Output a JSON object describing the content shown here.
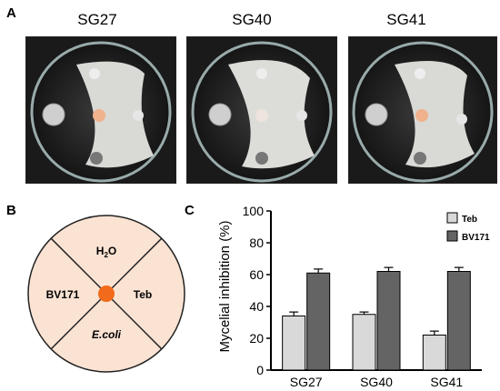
{
  "panel_a": {
    "letter": "A",
    "plates": [
      {
        "label": "SG27"
      },
      {
        "label": "SG40"
      },
      {
        "label": "SG41"
      }
    ]
  },
  "panel_b": {
    "letter": "B",
    "quadrants": {
      "top": "H",
      "top_sub": "2",
      "top_suffix": "O",
      "left": "BV171",
      "right": "Teb",
      "bottom": "E.coli"
    },
    "colors": {
      "fill": "#fbe3d3",
      "center": "#f26a1b",
      "line": "#222222"
    }
  },
  "panel_c": {
    "letter": "C"
  },
  "chart_data": {
    "type": "bar",
    "ylabel": "Mycelial inhibition (%)",
    "ylim": [
      0,
      100
    ],
    "yticks": [
      0,
      20,
      40,
      60,
      80,
      100
    ],
    "categories": [
      "SG27",
      "SG40",
      "SG41"
    ],
    "series": [
      {
        "name": "Teb",
        "values": [
          34,
          35,
          22
        ],
        "errors": [
          2.5,
          1.5,
          2.5
        ],
        "color": "#d9d9d9"
      },
      {
        "name": "BV171",
        "values": [
          61,
          62,
          62
        ],
        "errors": [
          2.5,
          2.5,
          2.5
        ],
        "color": "#646464"
      }
    ],
    "legend": "top-right",
    "grid": false
  }
}
